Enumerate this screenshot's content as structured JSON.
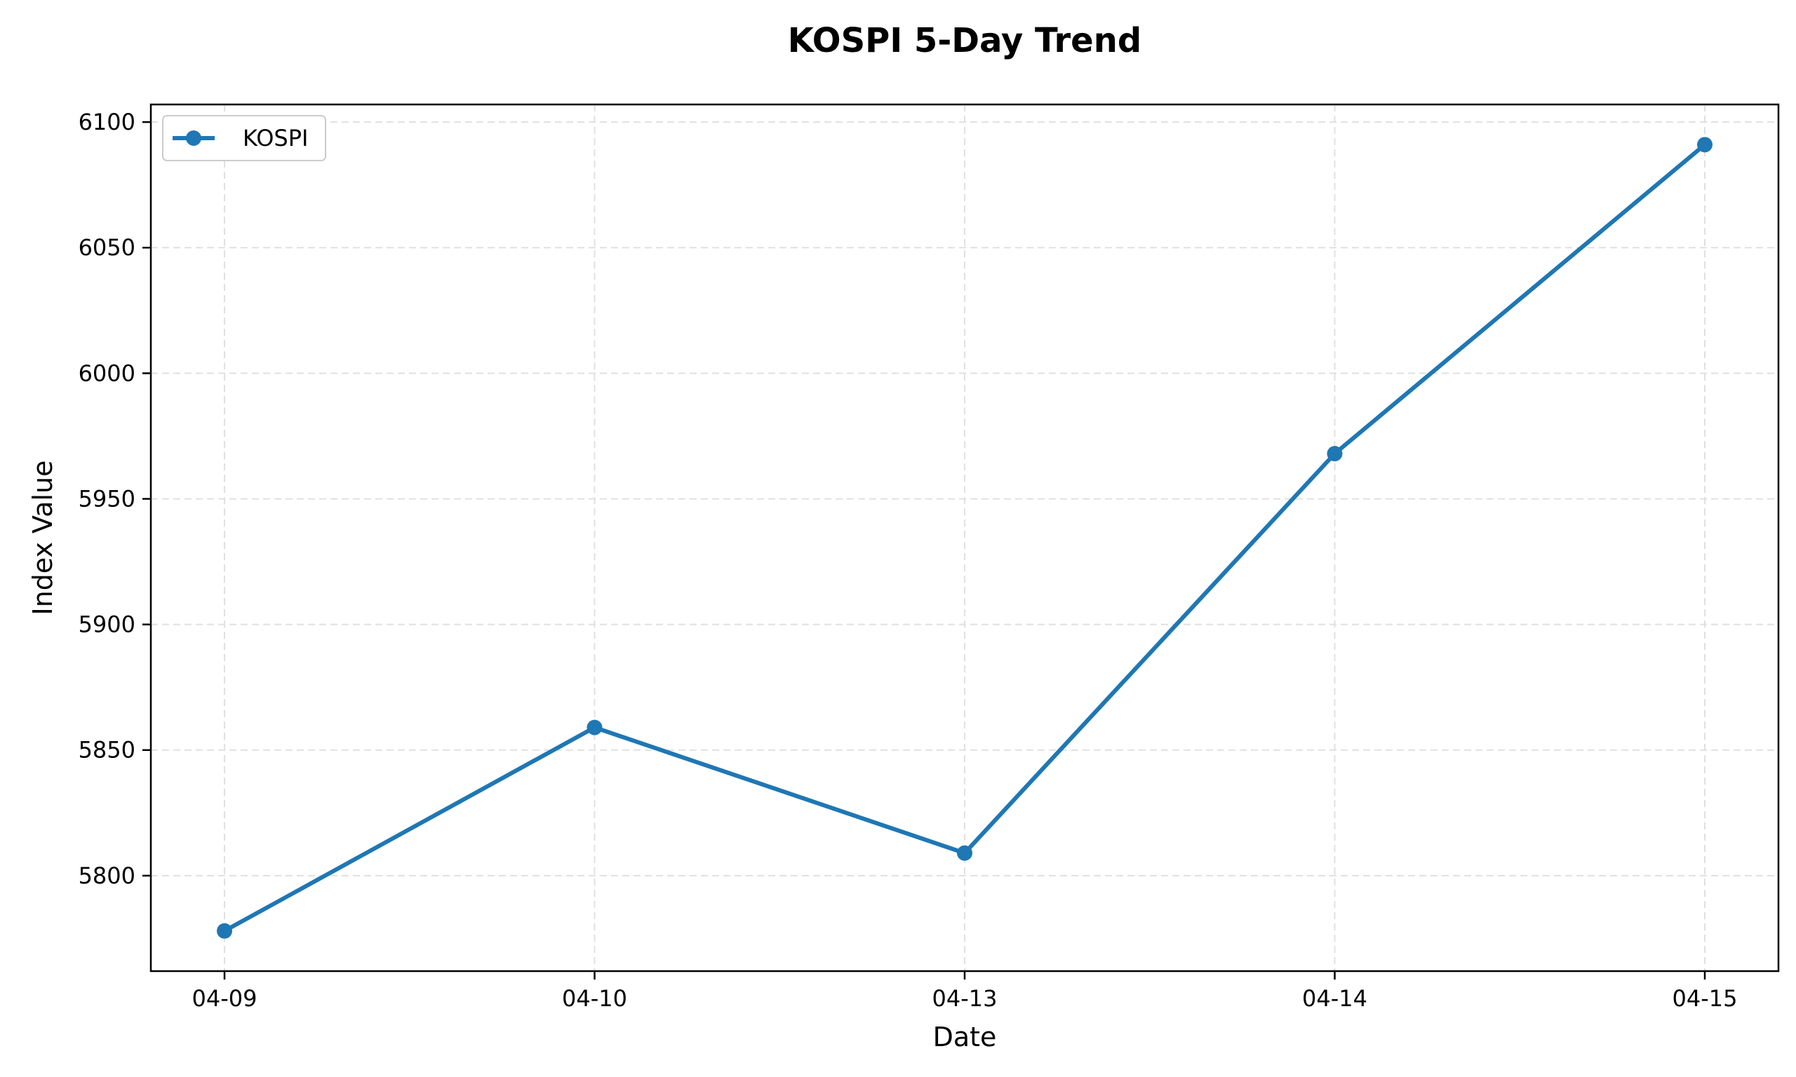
{
  "chart_data": {
    "type": "line",
    "title": "KOSPI 5-Day Trend",
    "xlabel": "Date",
    "ylabel": "Index Value",
    "categories": [
      "04-09",
      "04-10",
      "04-13",
      "04-14",
      "04-15"
    ],
    "series": [
      {
        "name": "KOSPI",
        "values": [
          5778,
          5859,
          5809,
          5968,
          6091
        ],
        "color": "#1f77b4"
      }
    ],
    "ylim": [
      5762,
      6107
    ],
    "yticks": [
      5800,
      5850,
      5900,
      5950,
      6000,
      6050,
      6100
    ],
    "grid": true,
    "legend_position": "top-left"
  }
}
